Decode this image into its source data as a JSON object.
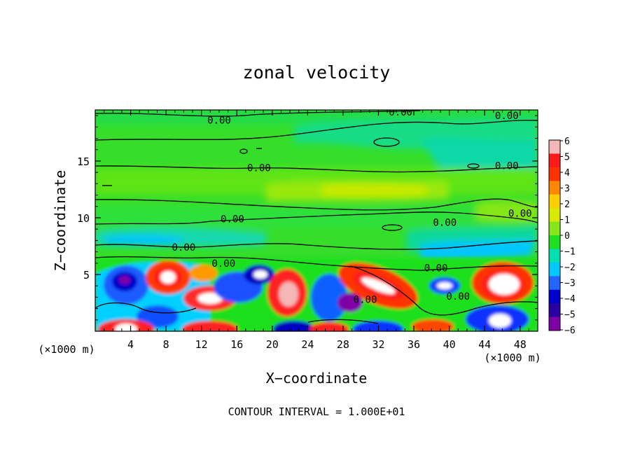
{
  "chart_data": {
    "type": "heatmap",
    "title": "zonal velocity",
    "xlabel": "X−coordinate",
    "ylabel": "Z−coordinate",
    "x_unit_left": "(×1000 m)",
    "x_unit_right": "(×1000 m)",
    "xlim": [
      0,
      50
    ],
    "ylim": [
      0,
      19.5
    ],
    "x_ticks": [
      4,
      8,
      12,
      16,
      20,
      24,
      28,
      32,
      36,
      40,
      44,
      48
    ],
    "y_ticks": [
      5,
      10,
      15
    ],
    "contour_labels": [
      {
        "text": "0.00",
        "x": 14,
        "z": 18.6
      },
      {
        "text": "0.00",
        "x": 34.5,
        "z": 19.3
      },
      {
        "text": "0.00",
        "x": 46.5,
        "z": 19.0
      },
      {
        "text": "0.00",
        "x": 18.5,
        "z": 14.4
      },
      {
        "text": "0.00",
        "x": 46.5,
        "z": 14.6
      },
      {
        "text": "0.00",
        "x": 15.5,
        "z": 9.9
      },
      {
        "text": "0.00",
        "x": 39.5,
        "z": 9.6
      },
      {
        "text": "0.00",
        "x": 48,
        "z": 10.4
      },
      {
        "text": "0.00",
        "x": 10,
        "z": 7.4
      },
      {
        "text": "0.00",
        "x": 14.5,
        "z": 6.0
      },
      {
        "text": "0.00",
        "x": 38.5,
        "z": 5.6
      },
      {
        "text": "0.00",
        "x": 30.5,
        "z": 2.8
      },
      {
        "text": "0.00",
        "x": 41,
        "z": 3.1
      }
    ],
    "colorbar": {
      "ticks": [
        "6",
        "5",
        "4",
        "3",
        "2",
        "1",
        "0",
        "−1",
        "−2",
        "−3",
        "−4",
        "−5",
        "−6"
      ],
      "colors": [
        "#f4b6b6",
        "#ff1a1a",
        "#ff3300",
        "#ff8800",
        "#ffd000",
        "#d8ea00",
        "#86e61c",
        "#1ee01e",
        "#00e0b0",
        "#00c8ff",
        "#2266ff",
        "#0000cc",
        "#2a00a0",
        "#8000a8"
      ]
    },
    "footer": "CONTOUR INTERVAL = 1.000E+01"
  }
}
